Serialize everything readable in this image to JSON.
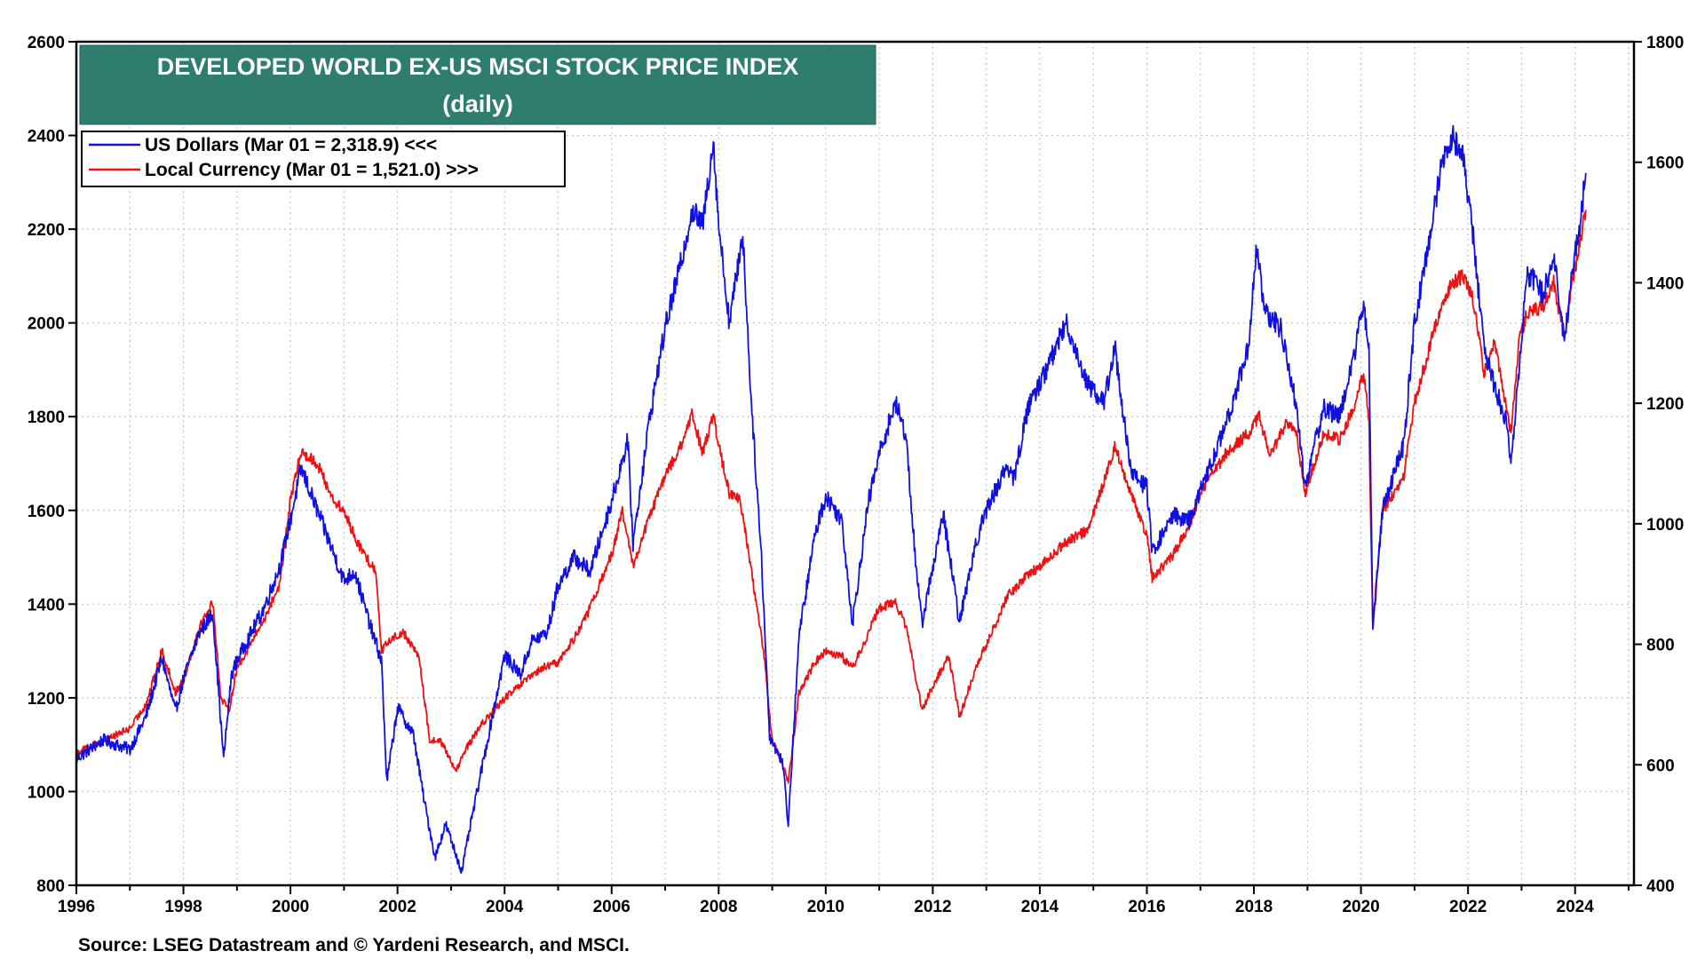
{
  "chart_data": {
    "type": "line",
    "title": "DEVELOPED WORLD EX-US MSCI STOCK PRICE INDEX",
    "subtitle": "(daily)",
    "source": "Source: LSEG Datastream and © Yardeni Research, and MSCI.",
    "xlim": [
      1996,
      2025.1
    ],
    "x_ticks": [
      1996,
      1998,
      2000,
      2002,
      2004,
      2006,
      2008,
      2010,
      2012,
      2014,
      2016,
      2018,
      2020,
      2022,
      2024
    ],
    "x_tick_labels": [
      "1996",
      "1998",
      "2000",
      "2002",
      "2004",
      "2006",
      "2008",
      "2010",
      "2012",
      "2014",
      "2016",
      "2018",
      "2020",
      "2022",
      "2024"
    ],
    "y_left": {
      "range": [
        800,
        2600
      ],
      "ticks": [
        "800",
        "1000",
        "1200",
        "1400",
        "1600",
        "1800",
        "2000",
        "2200",
        "2400",
        "2600"
      ]
    },
    "y_right": {
      "range": [
        400,
        1800
      ],
      "ticks": [
        "400",
        "600",
        "800",
        "1000",
        "1200",
        "1400",
        "1600",
        "1800"
      ]
    },
    "grid": true,
    "legend_position": "top-left",
    "series": [
      {
        "name": "US Dollars (Mar 01 = 2,318.9) <<<",
        "color": "#1010e0",
        "axis": "left",
        "points": [
          [
            1996.0,
            1070
          ],
          [
            1996.5,
            1110
          ],
          [
            1997.0,
            1090
          ],
          [
            1997.3,
            1160
          ],
          [
            1997.6,
            1285
          ],
          [
            1997.85,
            1170
          ],
          [
            1998.0,
            1240
          ],
          [
            1998.3,
            1340
          ],
          [
            1998.55,
            1380
          ],
          [
            1998.75,
            1070
          ],
          [
            1998.9,
            1250
          ],
          [
            1999.0,
            1280
          ],
          [
            1999.5,
            1390
          ],
          [
            1999.8,
            1480
          ],
          [
            2000.0,
            1580
          ],
          [
            2000.2,
            1690
          ],
          [
            2000.5,
            1600
          ],
          [
            2000.8,
            1510
          ],
          [
            2001.0,
            1450
          ],
          [
            2001.2,
            1470
          ],
          [
            2001.5,
            1350
          ],
          [
            2001.7,
            1280
          ],
          [
            2001.8,
            1020
          ],
          [
            2002.0,
            1180
          ],
          [
            2002.3,
            1120
          ],
          [
            2002.5,
            980
          ],
          [
            2002.7,
            860
          ],
          [
            2002.9,
            930
          ],
          [
            2003.2,
            830
          ],
          [
            2003.4,
            950
          ],
          [
            2003.7,
            1120
          ],
          [
            2004.0,
            1290
          ],
          [
            2004.3,
            1250
          ],
          [
            2004.5,
            1320
          ],
          [
            2004.8,
            1340
          ],
          [
            2005.0,
            1440
          ],
          [
            2005.3,
            1500
          ],
          [
            2005.6,
            1470
          ],
          [
            2006.0,
            1620
          ],
          [
            2006.3,
            1750
          ],
          [
            2006.4,
            1530
          ],
          [
            2006.7,
            1790
          ],
          [
            2007.0,
            1990
          ],
          [
            2007.3,
            2130
          ],
          [
            2007.5,
            2240
          ],
          [
            2007.7,
            2210
          ],
          [
            2007.9,
            2390
          ],
          [
            2008.0,
            2210
          ],
          [
            2008.2,
            2000
          ],
          [
            2008.45,
            2190
          ],
          [
            2008.6,
            1850
          ],
          [
            2008.8,
            1500
          ],
          [
            2008.95,
            1120
          ],
          [
            2009.2,
            1060
          ],
          [
            2009.3,
            930
          ],
          [
            2009.5,
            1330
          ],
          [
            2009.8,
            1550
          ],
          [
            2010.0,
            1630
          ],
          [
            2010.3,
            1580
          ],
          [
            2010.5,
            1360
          ],
          [
            2010.8,
            1620
          ],
          [
            2011.0,
            1720
          ],
          [
            2011.3,
            1830
          ],
          [
            2011.5,
            1760
          ],
          [
            2011.7,
            1460
          ],
          [
            2011.8,
            1360
          ],
          [
            2012.0,
            1480
          ],
          [
            2012.2,
            1590
          ],
          [
            2012.5,
            1360
          ],
          [
            2012.8,
            1530
          ],
          [
            2013.0,
            1600
          ],
          [
            2013.4,
            1700
          ],
          [
            2013.5,
            1660
          ],
          [
            2013.8,
            1830
          ],
          [
            2014.0,
            1870
          ],
          [
            2014.5,
            2000
          ],
          [
            2014.7,
            1930
          ],
          [
            2014.9,
            1870
          ],
          [
            2015.2,
            1830
          ],
          [
            2015.4,
            1950
          ],
          [
            2015.7,
            1680
          ],
          [
            2016.0,
            1650
          ],
          [
            2016.1,
            1510
          ],
          [
            2016.5,
            1590
          ],
          [
            2016.8,
            1580
          ],
          [
            2017.0,
            1640
          ],
          [
            2017.5,
            1790
          ],
          [
            2017.9,
            1950
          ],
          [
            2018.05,
            2170
          ],
          [
            2018.2,
            2020
          ],
          [
            2018.5,
            1990
          ],
          [
            2018.8,
            1820
          ],
          [
            2018.95,
            1650
          ],
          [
            2019.3,
            1820
          ],
          [
            2019.6,
            1800
          ],
          [
            2019.9,
            1950
          ],
          [
            2020.05,
            2040
          ],
          [
            2020.15,
            1940
          ],
          [
            2020.22,
            1350
          ],
          [
            2020.4,
            1600
          ],
          [
            2020.8,
            1740
          ],
          [
            2021.0,
            2000
          ],
          [
            2021.3,
            2190
          ],
          [
            2021.5,
            2340
          ],
          [
            2021.7,
            2400
          ],
          [
            2021.9,
            2360
          ],
          [
            2022.1,
            2180
          ],
          [
            2022.3,
            1950
          ],
          [
            2022.5,
            1860
          ],
          [
            2022.7,
            1800
          ],
          [
            2022.8,
            1700
          ],
          [
            2022.95,
            1900
          ],
          [
            2023.1,
            2110
          ],
          [
            2023.4,
            2060
          ],
          [
            2023.6,
            2150
          ],
          [
            2023.8,
            1960
          ],
          [
            2023.95,
            2110
          ],
          [
            2024.1,
            2220
          ],
          [
            2024.2,
            2320
          ]
        ]
      },
      {
        "name": "Local Currency (Mar 01 = 1,521.0) >>>",
        "color": "#ee1111",
        "axis": "right",
        "points": [
          [
            1996.0,
            620
          ],
          [
            1996.5,
            640
          ],
          [
            1997.0,
            660
          ],
          [
            1997.3,
            700
          ],
          [
            1997.6,
            790
          ],
          [
            1997.85,
            720
          ],
          [
            1998.0,
            740
          ],
          [
            1998.3,
            830
          ],
          [
            1998.55,
            870
          ],
          [
            1998.7,
            710
          ],
          [
            1998.85,
            690
          ],
          [
            1999.0,
            760
          ],
          [
            1999.5,
            840
          ],
          [
            1999.8,
            900
          ],
          [
            2000.0,
            1040
          ],
          [
            2000.2,
            1120
          ],
          [
            2000.5,
            1100
          ],
          [
            2000.8,
            1040
          ],
          [
            2001.0,
            1020
          ],
          [
            2001.3,
            960
          ],
          [
            2001.6,
            920
          ],
          [
            2001.7,
            790
          ],
          [
            2001.9,
            810
          ],
          [
            2002.1,
            820
          ],
          [
            2002.4,
            780
          ],
          [
            2002.6,
            640
          ],
          [
            2002.8,
            640
          ],
          [
            2003.1,
            590
          ],
          [
            2003.3,
            630
          ],
          [
            2003.6,
            670
          ],
          [
            2004.0,
            710
          ],
          [
            2004.4,
            740
          ],
          [
            2004.7,
            760
          ],
          [
            2005.0,
            770
          ],
          [
            2005.3,
            810
          ],
          [
            2005.6,
            860
          ],
          [
            2006.0,
            950
          ],
          [
            2006.2,
            1020
          ],
          [
            2006.4,
            930
          ],
          [
            2006.7,
            1010
          ],
          [
            2007.0,
            1080
          ],
          [
            2007.3,
            1130
          ],
          [
            2007.5,
            1180
          ],
          [
            2007.7,
            1120
          ],
          [
            2007.9,
            1180
          ],
          [
            2008.0,
            1130
          ],
          [
            2008.2,
            1050
          ],
          [
            2008.4,
            1040
          ],
          [
            2008.6,
            930
          ],
          [
            2008.85,
            780
          ],
          [
            2009.0,
            640
          ],
          [
            2009.2,
            600
          ],
          [
            2009.3,
            570
          ],
          [
            2009.5,
            720
          ],
          [
            2009.8,
            770
          ],
          [
            2010.0,
            790
          ],
          [
            2010.3,
            780
          ],
          [
            2010.5,
            760
          ],
          [
            2010.8,
            820
          ],
          [
            2011.0,
            860
          ],
          [
            2011.3,
            870
          ],
          [
            2011.5,
            830
          ],
          [
            2011.8,
            690
          ],
          [
            2012.0,
            730
          ],
          [
            2012.3,
            780
          ],
          [
            2012.5,
            680
          ],
          [
            2012.8,
            760
          ],
          [
            2013.0,
            800
          ],
          [
            2013.4,
            880
          ],
          [
            2013.7,
            910
          ],
          [
            2014.0,
            930
          ],
          [
            2014.5,
            970
          ],
          [
            2014.9,
            990
          ],
          [
            2015.2,
            1070
          ],
          [
            2015.4,
            1130
          ],
          [
            2015.7,
            1050
          ],
          [
            2016.0,
            980
          ],
          [
            2016.1,
            910
          ],
          [
            2016.5,
            950
          ],
          [
            2016.8,
            1000
          ],
          [
            2017.0,
            1050
          ],
          [
            2017.5,
            1120
          ],
          [
            2017.9,
            1150
          ],
          [
            2018.1,
            1180
          ],
          [
            2018.3,
            1110
          ],
          [
            2018.6,
            1170
          ],
          [
            2018.8,
            1150
          ],
          [
            2018.95,
            1050
          ],
          [
            2019.3,
            1150
          ],
          [
            2019.6,
            1140
          ],
          [
            2019.9,
            1200
          ],
          [
            2020.05,
            1250
          ],
          [
            2020.15,
            1170
          ],
          [
            2020.22,
            830
          ],
          [
            2020.4,
            1020
          ],
          [
            2020.8,
            1080
          ],
          [
            2021.0,
            1200
          ],
          [
            2021.3,
            1300
          ],
          [
            2021.5,
            1360
          ],
          [
            2021.7,
            1400
          ],
          [
            2021.9,
            1410
          ],
          [
            2022.1,
            1370
          ],
          [
            2022.3,
            1250
          ],
          [
            2022.5,
            1300
          ],
          [
            2022.8,
            1150
          ],
          [
            2022.95,
            1300
          ],
          [
            2023.1,
            1350
          ],
          [
            2023.4,
            1360
          ],
          [
            2023.6,
            1400
          ],
          [
            2023.8,
            1310
          ],
          [
            2023.95,
            1400
          ],
          [
            2024.1,
            1470
          ],
          [
            2024.2,
            1521
          ]
        ]
      }
    ]
  }
}
